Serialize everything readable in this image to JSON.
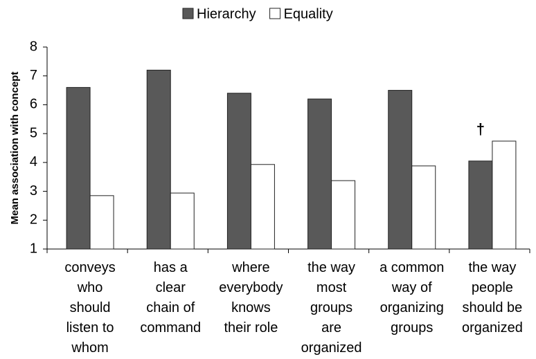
{
  "chart_data": {
    "type": "bar",
    "ylabel": "Mean association with concept",
    "categories": [
      "conveys\nwho\nshould\nlisten to\nwhom",
      "has a\nclear\nchain of\ncommand",
      "where\neverybody\nknows\ntheir role",
      "the way\nmost\ngroups\nare\norganized",
      "a common\nway of\norganizing\ngroups",
      "the way\npeople\nshould be\norganized"
    ],
    "series": [
      {
        "name": "Hierarchy",
        "color": "#595959",
        "values": [
          6.6,
          7.2,
          6.4,
          6.2,
          6.5,
          4.05
        ]
      },
      {
        "name": "Equality",
        "color": "#ffffff",
        "values": [
          2.85,
          2.94,
          3.93,
          3.37,
          3.88,
          4.74
        ]
      }
    ],
    "annotation": "†",
    "ylim": [
      1,
      8
    ],
    "yticks": [
      1,
      2,
      3,
      4,
      5,
      6,
      7,
      8
    ],
    "grid": false,
    "legend": "top"
  }
}
